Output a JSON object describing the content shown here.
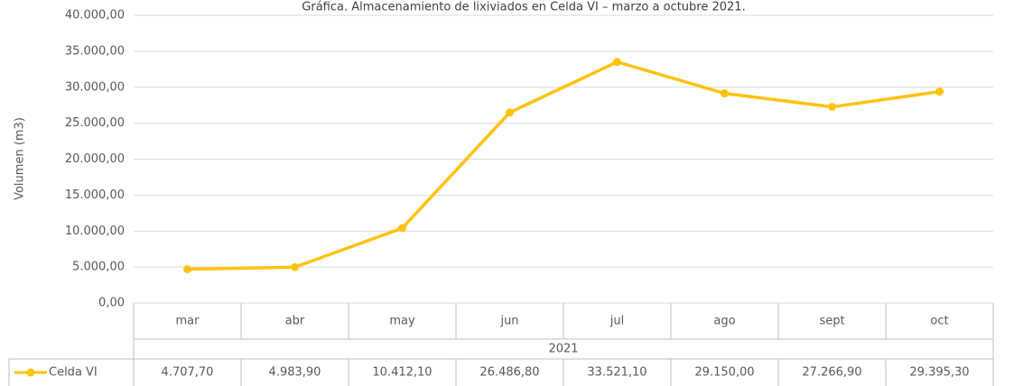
{
  "chart_data": {
    "type": "line",
    "title": "Gráfica. Almacenamiento de lixiviados en Celda VI – marzo a octubre 2021.",
    "y_label": "Volumen (m3)",
    "group_label": "2021",
    "categories": [
      "mar",
      "abr",
      "may",
      "jun",
      "jul",
      "ago",
      "sept",
      "oct"
    ],
    "series": [
      {
        "name": "Celda VI",
        "color": "#ffc20e",
        "values": [
          4707.7,
          4983.9,
          10412.1,
          26486.8,
          33521.1,
          29150.0,
          27266.9,
          29395.3
        ],
        "value_labels": [
          "4.707,70",
          "4.983,90",
          "10.412,10",
          "26.486,80",
          "33.521,10",
          "29.150,00",
          "27.266,90",
          "29.395,30"
        ]
      }
    ],
    "ylim": [
      0,
      40000
    ],
    "yticks": [
      {
        "value": 0,
        "label": "0,00"
      },
      {
        "value": 5000,
        "label": "5.000,00"
      },
      {
        "value": 10000,
        "label": "10.000,00"
      },
      {
        "value": 15000,
        "label": "15.000,00"
      },
      {
        "value": 20000,
        "label": "20.000,00"
      },
      {
        "value": 25000,
        "label": "25.000,00"
      },
      {
        "value": 30000,
        "label": "30.000,00"
      },
      {
        "value": 35000,
        "label": "35.000,00"
      },
      {
        "value": 40000,
        "label": "40.000,00"
      }
    ],
    "grid": true
  }
}
